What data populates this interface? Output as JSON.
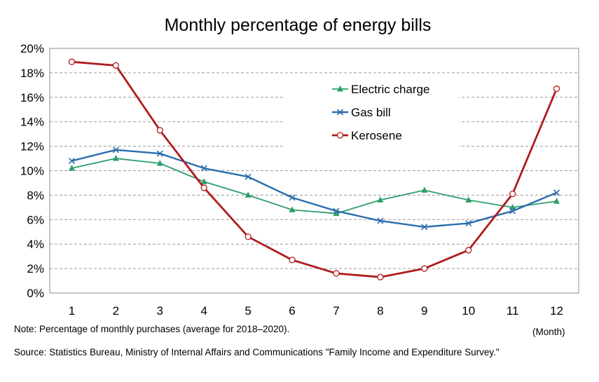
{
  "chart_data": {
    "type": "line",
    "title": "Monthly percentage of energy bills",
    "x": [
      "1",
      "2",
      "3",
      "4",
      "5",
      "6",
      "7",
      "8",
      "9",
      "10",
      "11",
      "12"
    ],
    "xlabel": "(Month)",
    "ylabel": "",
    "ylim": [
      0,
      20
    ],
    "yticks": [
      "0%",
      "2%",
      "4%",
      "6%",
      "8%",
      "10%",
      "12%",
      "14%",
      "16%",
      "18%",
      "20%"
    ],
    "grid": true,
    "legend_position": "top-right",
    "series": [
      {
        "name": "Electric charge",
        "color": "#2e9e6b",
        "marker": "triangle",
        "values": [
          10.2,
          11.0,
          10.6,
          9.1,
          8.0,
          6.8,
          6.5,
          7.6,
          8.4,
          7.6,
          7.0,
          7.5
        ]
      },
      {
        "name": "Gas bill",
        "color": "#2a6ead",
        "marker": "x",
        "values": [
          10.8,
          11.7,
          11.4,
          10.2,
          9.5,
          7.8,
          6.7,
          5.9,
          5.4,
          5.7,
          6.7,
          8.2
        ]
      },
      {
        "name": "Kerosene",
        "color": "#b01c1c",
        "marker": "circle",
        "values": [
          18.9,
          18.6,
          13.3,
          8.6,
          4.6,
          2.7,
          1.6,
          1.3,
          2.0,
          3.5,
          8.1,
          16.7
        ]
      }
    ]
  },
  "notes": {
    "note": "Note: Percentage of monthly purchases (average for 2018–2020).",
    "source": "Source: Statistics Bureau, Ministry of Internal Affairs and Communications \"Family Income and Expenditure Survey.\""
  }
}
